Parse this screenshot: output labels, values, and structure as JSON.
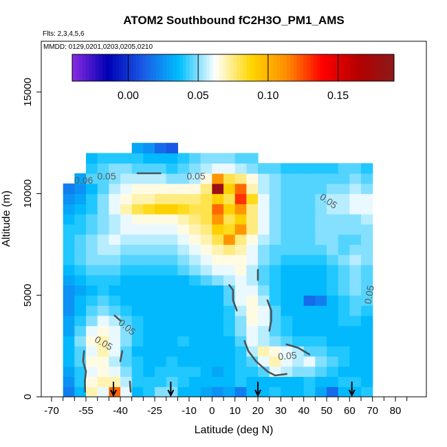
{
  "chart_data": {
    "type": "heatmap",
    "title": "ATOM2 Southbound fC2H3O_PM1_AMS",
    "flights_note": "Flts: 2,3,4,5,6",
    "dates_note": "MMDD: 0129,0201,0203,0205,0210",
    "xlabel": "Latitude (deg N)",
    "ylabel": "Altitude (m)",
    "xlim": [
      -70,
      85
    ],
    "ylim": [
      0,
      17500
    ],
    "x_tick_labels": [
      "-70",
      "-55",
      "-40",
      "-25",
      "-10",
      "0",
      "10",
      "20",
      "30",
      "40",
      "50",
      "60",
      "70",
      "80"
    ],
    "x_minor_ticks": [
      -65,
      -60,
      -50,
      -45,
      -35,
      -30,
      -20,
      -15,
      -5,
      5,
      15,
      25,
      35,
      45,
      55,
      65,
      75,
      85
    ],
    "y_ticks": [
      0,
      5000,
      10000,
      15000
    ],
    "y_tick_labels": [
      "0",
      "5000",
      "10000",
      "15000"
    ],
    "colorbar": {
      "range": [
        -0.04,
        0.19
      ],
      "ticks": [
        0.0,
        0.05,
        0.1,
        0.15
      ],
      "tick_labels": [
        "0.00",
        "0.05",
        "0.10",
        "0.15"
      ],
      "colors": [
        "#8a2be2",
        "#0000b4",
        "#1a5ce6",
        "#00bfff",
        "#ffffff",
        "#ffd700",
        "#ff8c00",
        "#ff0000",
        "#b40000",
        "#8b1a1a"
      ]
    },
    "contour_level": 0.05,
    "contour_labels": [
      "0.05",
      "0.05",
      "0.05",
      "0.05",
      "0.05",
      "0.05",
      "0.06",
      "0.05"
    ],
    "profile_markers_lat": [
      -43,
      -18,
      20,
      61
    ],
    "lat_bins": [
      -67.5,
      -62.5,
      -57.5,
      -52.5,
      -47.5,
      -42.5,
      -37.5,
      -32.5,
      -27.5,
      -22.5,
      -17.5,
      -12.5,
      -7.5,
      -2.5,
      2.5,
      7.5,
      12.5,
      17.5,
      22.5,
      27.5,
      32.5,
      37.5,
      42.5,
      47.5,
      52.5,
      57.5,
      62.5,
      67.5,
      72.5
    ],
    "alt_bins": [
      250,
      750,
      1250,
      1750,
      2250,
      2750,
      3250,
      3750,
      4250,
      4750,
      5250,
      5750,
      6250,
      6750,
      7250,
      7750,
      8250,
      8750,
      9250,
      9750,
      10250,
      10750,
      11250,
      11750,
      12250
    ],
    "values": [
      [
        null,
        0.02,
        0.035,
        0.07,
        0.06,
        0.12,
        0.06,
        0.035,
        0.04,
        0.05,
        0.05,
        0.035,
        0.035,
        0.03,
        0.025,
        0.03,
        0.02,
        0.035,
        0.035,
        0.04,
        0.035,
        0.035,
        0.04,
        0.03,
        0.015,
        0.035,
        0.035,
        0.04,
        null
      ],
      [
        null,
        0.025,
        0.04,
        0.065,
        0.07,
        0.07,
        0.055,
        0.04,
        0.04,
        0.04,
        0.045,
        0.04,
        0.035,
        0.035,
        0.035,
        0.035,
        0.04,
        0.035,
        0.035,
        0.035,
        0.035,
        0.035,
        0.04,
        0.035,
        0.035,
        0.04,
        0.04,
        0.035,
        null
      ],
      [
        null,
        0.03,
        0.04,
        0.06,
        0.065,
        0.06,
        0.05,
        0.04,
        0.035,
        0.04,
        0.04,
        0.04,
        0.04,
        0.035,
        0.03,
        0.035,
        0.04,
        0.04,
        0.045,
        0.06,
        0.055,
        0.05,
        0.05,
        0.045,
        0.04,
        0.035,
        0.035,
        0.035,
        null
      ],
      [
        null,
        0.035,
        0.045,
        0.065,
        0.065,
        0.055,
        0.045,
        0.04,
        0.035,
        0.035,
        0.04,
        0.035,
        0.035,
        0.035,
        0.035,
        0.035,
        0.04,
        0.045,
        0.06,
        0.07,
        0.06,
        0.055,
        0.06,
        0.05,
        0.045,
        0.04,
        0.035,
        0.035,
        null
      ],
      [
        null,
        0.035,
        0.045,
        0.06,
        0.07,
        0.06,
        0.045,
        0.035,
        0.035,
        0.035,
        0.035,
        0.035,
        0.035,
        0.035,
        0.035,
        0.035,
        0.04,
        0.055,
        0.07,
        0.065,
        0.06,
        0.055,
        0.045,
        0.045,
        0.04,
        0.04,
        0.035,
        0.035,
        null
      ],
      [
        null,
        0.035,
        0.05,
        0.065,
        0.07,
        0.06,
        0.05,
        0.04,
        0.035,
        0.035,
        0.035,
        0.04,
        0.035,
        0.035,
        0.035,
        0.035,
        0.045,
        0.06,
        0.055,
        0.05,
        0.045,
        0.04,
        0.04,
        0.04,
        0.035,
        0.035,
        0.035,
        0.035,
        null
      ],
      [
        null,
        0.03,
        0.045,
        0.06,
        0.065,
        0.06,
        0.05,
        0.04,
        0.035,
        0.035,
        0.035,
        0.035,
        0.035,
        0.035,
        0.035,
        0.04,
        0.05,
        0.06,
        0.055,
        0.045,
        0.04,
        0.035,
        0.035,
        0.035,
        0.035,
        0.035,
        0.035,
        0.035,
        null
      ],
      [
        null,
        0.03,
        0.04,
        0.05,
        0.06,
        0.055,
        0.045,
        0.04,
        0.035,
        0.035,
        0.035,
        0.035,
        0.035,
        0.035,
        0.035,
        0.04,
        0.05,
        0.065,
        0.06,
        0.045,
        0.04,
        0.035,
        0.035,
        0.035,
        0.035,
        0.04,
        0.04,
        0.035,
        null
      ],
      [
        null,
        0.025,
        0.035,
        0.045,
        0.05,
        0.045,
        0.04,
        0.035,
        0.035,
        0.035,
        0.035,
        0.035,
        0.035,
        0.035,
        0.035,
        0.04,
        0.055,
        0.065,
        0.06,
        0.045,
        0.035,
        0.035,
        0.035,
        0.035,
        0.035,
        0.04,
        0.045,
        0.04,
        null
      ],
      [
        null,
        0.025,
        0.035,
        0.04,
        0.045,
        0.04,
        0.035,
        0.035,
        0.035,
        0.035,
        0.035,
        0.035,
        0.035,
        0.035,
        0.035,
        0.045,
        0.06,
        0.065,
        0.055,
        0.04,
        0.035,
        0.035,
        0.015,
        0.02,
        0.035,
        0.04,
        0.045,
        0.045,
        null
      ],
      [
        null,
        0.025,
        0.03,
        0.035,
        0.04,
        0.035,
        0.035,
        0.035,
        0.035,
        0.035,
        0.035,
        0.035,
        0.035,
        0.035,
        0.035,
        0.045,
        0.06,
        0.06,
        0.05,
        0.04,
        0.035,
        0.035,
        0.035,
        0.035,
        0.04,
        0.045,
        0.05,
        0.045,
        null
      ],
      [
        null,
        0.03,
        0.035,
        0.04,
        0.04,
        0.04,
        0.035,
        0.035,
        0.035,
        0.035,
        0.035,
        0.035,
        0.04,
        0.045,
        0.05,
        0.055,
        0.06,
        0.055,
        0.045,
        0.04,
        0.035,
        0.035,
        0.035,
        0.035,
        0.04,
        0.045,
        0.05,
        0.045,
        null
      ],
      [
        null,
        0.035,
        0.04,
        0.045,
        0.045,
        0.045,
        0.04,
        0.04,
        0.04,
        0.04,
        0.04,
        0.045,
        0.05,
        0.055,
        0.06,
        0.06,
        0.065,
        0.055,
        0.045,
        0.04,
        0.035,
        0.035,
        0.035,
        0.035,
        0.04,
        0.045,
        0.05,
        0.045,
        null
      ],
      [
        null,
        0.04,
        0.045,
        0.05,
        0.05,
        0.05,
        0.045,
        0.045,
        0.045,
        0.045,
        0.045,
        0.05,
        0.055,
        0.06,
        0.065,
        0.065,
        0.065,
        0.06,
        0.05,
        0.045,
        0.04,
        0.04,
        0.04,
        0.04,
        0.045,
        0.05,
        0.055,
        0.05,
        null
      ],
      [
        null,
        0.04,
        0.045,
        0.05,
        0.055,
        0.055,
        0.05,
        0.05,
        0.05,
        0.05,
        0.05,
        0.055,
        0.06,
        0.065,
        0.07,
        0.075,
        0.07,
        0.06,
        0.05,
        0.045,
        0.045,
        0.045,
        0.045,
        0.045,
        0.05,
        0.045,
        0.05,
        0.05,
        null
      ],
      [
        null,
        0.04,
        0.045,
        0.05,
        0.055,
        0.06,
        0.055,
        0.055,
        0.055,
        0.055,
        0.055,
        0.06,
        0.065,
        0.07,
        0.08,
        0.11,
        0.075,
        0.065,
        0.055,
        0.05,
        0.045,
        0.045,
        0.045,
        0.05,
        0.05,
        0.045,
        0.045,
        0.05,
        null
      ],
      [
        null,
        0.04,
        0.04,
        0.045,
        0.05,
        0.055,
        0.06,
        0.06,
        0.06,
        0.06,
        0.06,
        0.065,
        0.07,
        0.075,
        0.09,
        0.085,
        0.11,
        0.075,
        0.06,
        0.05,
        0.045,
        0.045,
        0.045,
        0.05,
        0.05,
        0.05,
        0.05,
        0.05,
        null
      ],
      [
        null,
        0.035,
        0.04,
        0.045,
        0.05,
        0.055,
        0.06,
        0.065,
        0.065,
        0.065,
        0.065,
        0.07,
        0.075,
        0.08,
        0.11,
        0.08,
        0.09,
        0.075,
        0.06,
        0.05,
        0.045,
        0.045,
        0.045,
        0.05,
        0.05,
        0.05,
        0.05,
        0.055,
        null
      ],
      [
        null,
        0.03,
        0.035,
        0.04,
        0.05,
        0.06,
        0.07,
        0.08,
        0.085,
        0.09,
        0.09,
        0.085,
        0.08,
        0.08,
        0.12,
        0.09,
        0.11,
        0.075,
        0.06,
        0.05,
        0.045,
        0.045,
        0.045,
        0.05,
        0.055,
        0.055,
        0.06,
        0.06,
        null
      ],
      [
        null,
        0.025,
        0.03,
        0.04,
        0.05,
        0.06,
        0.065,
        0.07,
        0.07,
        0.075,
        0.075,
        0.075,
        0.075,
        0.08,
        0.09,
        0.08,
        0.13,
        0.085,
        0.06,
        0.05,
        0.045,
        0.045,
        0.045,
        0.05,
        0.055,
        0.055,
        0.06,
        0.06,
        null
      ],
      [
        null,
        0.02,
        0.025,
        0.035,
        0.045,
        0.055,
        0.06,
        0.065,
        0.065,
        0.065,
        0.065,
        0.065,
        0.065,
        0.075,
        0.18,
        0.09,
        0.12,
        0.07,
        0.055,
        0.05,
        0.045,
        0.045,
        0.045,
        0.045,
        0.05,
        0.05,
        0.055,
        0.05,
        null
      ],
      [
        null,
        null,
        0.03,
        0.045,
        0.045,
        0.05,
        0.055,
        0.055,
        0.055,
        0.055,
        0.05,
        0.05,
        0.055,
        0.065,
        0.11,
        0.08,
        0.075,
        0.065,
        0.055,
        0.05,
        0.045,
        0.045,
        0.045,
        0.045,
        0.045,
        0.045,
        0.05,
        0.045,
        null
      ],
      [
        null,
        null,
        null,
        0.04,
        0.045,
        0.05,
        0.05,
        0.045,
        0.045,
        0.045,
        0.04,
        0.045,
        0.05,
        0.055,
        0.06,
        0.06,
        0.055,
        0.05,
        0.045,
        0.045,
        0.04,
        0.04,
        0.04,
        0.04,
        0.04,
        0.045,
        0.045,
        0.04,
        null
      ],
      [
        null,
        null,
        null,
        0.035,
        0.04,
        0.04,
        0.04,
        0.04,
        0.035,
        0.035,
        0.035,
        0.04,
        0.045,
        0.05,
        0.05,
        0.05,
        0.045,
        0.045,
        null,
        null,
        null,
        null,
        null,
        null,
        null,
        null,
        null,
        null,
        null
      ],
      [
        null,
        null,
        null,
        null,
        null,
        null,
        null,
        0.03,
        0.025,
        0.015,
        0.01,
        null,
        null,
        null,
        null,
        null,
        null,
        null,
        null,
        null,
        null,
        null,
        null,
        null,
        null,
        null,
        null,
        null,
        null
      ]
    ]
  }
}
